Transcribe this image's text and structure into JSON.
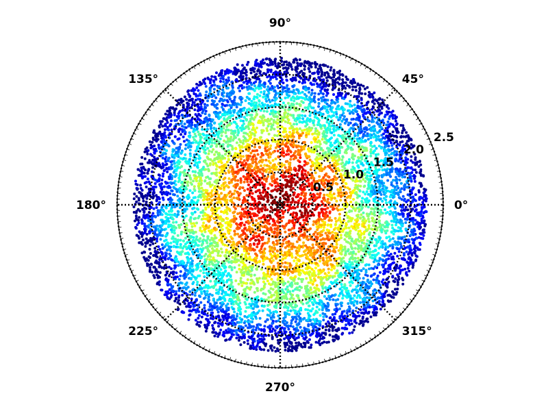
{
  "chart_data": {
    "type": "scatter",
    "projection": "polar",
    "colormap": "jet",
    "colormap_colors": [
      "#00008f",
      "#0000ff",
      "#0080ff",
      "#00ffff",
      "#80ff80",
      "#ffff00",
      "#ff8000",
      "#ff0000",
      "#800000"
    ],
    "theta_tick_labels": [
      "0°",
      "45°",
      "90°",
      "135°",
      "180°",
      "225°",
      "270°",
      "315°"
    ],
    "theta_tick_values_deg": [
      0,
      45,
      90,
      135,
      180,
      225,
      270,
      315
    ],
    "r_tick_labels": [
      "0.5",
      "1.0",
      "1.5",
      "2.0",
      "2.5"
    ],
    "r_tick_values": [
      0.5,
      1.0,
      1.5,
      2.0,
      2.5
    ],
    "r_tick_label_angle_deg": 22.5,
    "rlim": [
      0,
      2.5
    ],
    "data_radius_max": 2.25,
    "point_count": 9000,
    "grid": true,
    "grid_style": "dotted",
    "color_encoding": "density high at center (red) decreasing outward (blue)"
  }
}
